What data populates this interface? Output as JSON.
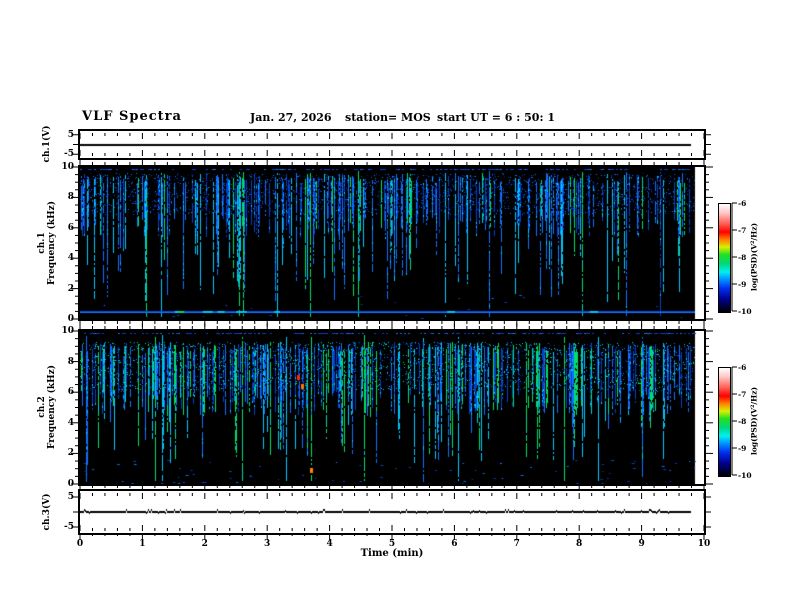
{
  "header": {
    "title": "VLF Spectra",
    "date": "Jan. 27, 2026",
    "station": "station= MOS",
    "start_ut": "start UT =  6 : 50: 1"
  },
  "chart_data": {
    "type": "heatmap",
    "description": "VLF spectrogram quicklook plot: four stacked panels sharing one time axis; two voltage strip charts (ch.1, ch.3) and two frequency-time spectrograms (ch.1, ch.2) with rainbow colorbars of log power spectral density.",
    "time_axis": {
      "label": "Time (min)",
      "min": 0,
      "max": 10,
      "major_ticks": [
        0,
        1,
        2,
        3,
        4,
        5,
        6,
        7,
        8,
        9,
        10
      ],
      "minor_step_min": 0.2,
      "data_end_min": 9.8
    },
    "palette": {
      "background": "#000000",
      "streaks": [
        "#0540c9",
        "#1070ff",
        "#00c8ff",
        "#00e065",
        "#5cff4a"
      ]
    },
    "panels": [
      {
        "id": "ch1-voltage",
        "kind": "line",
        "ylabel": "ch.1(V)",
        "ymin": -5,
        "ymax": 5,
        "ytick_labels": [
          5,
          -5
        ],
        "yticks": [
          5,
          0,
          -5
        ],
        "signal": "flat trace at 0 V",
        "value_v": 0
      },
      {
        "id": "ch1-spectrogram",
        "kind": "spectrogram",
        "channel": "ch.1",
        "ylabel": "Frequency (kHz)",
        "ymin": 0,
        "ymax": 10,
        "ytick_labels": [
          10,
          8,
          6,
          4,
          2,
          0
        ],
        "yminor_step_khz": 0.5,
        "band_khz": [
          6.9,
          9.6
        ],
        "horiz_line_khz": 0.55,
        "seed": 7,
        "n_streaks": 260,
        "green_ratio": 0.1,
        "bottom_scatter": 22,
        "speckle_colors": [
          "#021f78",
          "#0540c9",
          "#1070ff"
        ],
        "full_streaks": [
          {
            "t": 1.05,
            "color": "#00e065"
          },
          {
            "t": 1.3,
            "color": "#00c8ff"
          },
          {
            "t": 2.55,
            "color": "#00e065"
          },
          {
            "t": 2.62,
            "color": "#00e065"
          },
          {
            "t": 3.15,
            "color": "#00c8ff"
          },
          {
            "t": 3.68,
            "color": "#00e065"
          },
          {
            "t": 4.45,
            "color": "#00e065"
          },
          {
            "t": 5.85,
            "color": "#00c8ff"
          },
          {
            "t": 6.55,
            "color": "#1070ff"
          },
          {
            "t": 8.05,
            "color": "#00e065"
          },
          {
            "t": 8.75,
            "color": "#1070ff"
          },
          {
            "t": 9.3,
            "color": "#0540c9"
          }
        ],
        "hot_spots": []
      },
      {
        "id": "ch2-spectrogram",
        "kind": "spectrogram",
        "channel": "ch.2",
        "ylabel": "Frequency (kHz)",
        "ymin": 0,
        "ymax": 10,
        "ytick_labels": [
          10,
          8,
          6,
          4,
          2,
          0
        ],
        "yminor_step_khz": 0.5,
        "band_khz": [
          6.1,
          9.3
        ],
        "horiz_line_khz": null,
        "seed": 1313,
        "n_streaks": 320,
        "green_ratio": 0.26,
        "bottom_scatter": 80,
        "speckle_colors": [
          "#021f78",
          "#0540c9",
          "#1070ff",
          "#00c8ff",
          "#00e065"
        ],
        "full_streaks": [
          {
            "t": 0.1,
            "color": "#1070ff"
          },
          {
            "t": 1.2,
            "color": "#00e065"
          },
          {
            "t": 1.32,
            "color": "#00c8ff"
          },
          {
            "t": 2.6,
            "color": "#00e065"
          },
          {
            "t": 3.3,
            "color": "#00c8ff"
          },
          {
            "t": 3.7,
            "color": "#00e065"
          },
          {
            "t": 4.55,
            "color": "#00e065"
          },
          {
            "t": 5.5,
            "color": "#1070ff"
          },
          {
            "t": 6.05,
            "color": "#00c8ff"
          },
          {
            "t": 7.75,
            "color": "#00e065"
          },
          {
            "t": 8.3,
            "color": "#00c8ff"
          },
          {
            "t": 9.0,
            "color": "#1070ff"
          }
        ],
        "hot_spots": [
          {
            "t_min": 3.5,
            "f_khz": 7.0,
            "color": "#ff2a00"
          },
          {
            "t_min": 3.56,
            "f_khz": 6.4,
            "color": "#ff7700"
          },
          {
            "t_min": 3.7,
            "f_khz": 0.9,
            "color": "#ff8800"
          }
        ]
      },
      {
        "id": "ch3-voltage",
        "kind": "line",
        "ylabel": "ch.3(V)",
        "ymin": -5,
        "ymax": 5,
        "ytick_labels": [
          5,
          -5
        ],
        "yticks": [
          5,
          0,
          -5
        ],
        "signal": "flat trace at 0 V with small noise spikes",
        "value_v": 0
      }
    ],
    "colorbars": [
      {
        "label": "log(PSD)(V²/Hz)",
        "ticks": [
          -6,
          -7,
          -8,
          -9,
          -10
        ]
      },
      {
        "label": "log(PSD)(V²/Hz)",
        "ticks": [
          -6,
          -7,
          -8,
          -9,
          -10
        ]
      }
    ],
    "colorbar_gradient": [
      {
        "pos": 0.0,
        "color": "#ffffff"
      },
      {
        "pos": 0.08,
        "color": "#ffc8c8"
      },
      {
        "pos": 0.18,
        "color": "#ff6055"
      },
      {
        "pos": 0.26,
        "color": "#ff0000"
      },
      {
        "pos": 0.33,
        "color": "#ff8000"
      },
      {
        "pos": 0.4,
        "color": "#d8f000"
      },
      {
        "pos": 0.47,
        "color": "#22e022"
      },
      {
        "pos": 0.55,
        "color": "#00d878"
      },
      {
        "pos": 0.63,
        "color": "#00f0f0"
      },
      {
        "pos": 0.7,
        "color": "#0090ff"
      },
      {
        "pos": 0.78,
        "color": "#0030f0"
      },
      {
        "pos": 0.88,
        "color": "#000090"
      },
      {
        "pos": 1.0,
        "color": "#000000"
      }
    ]
  }
}
